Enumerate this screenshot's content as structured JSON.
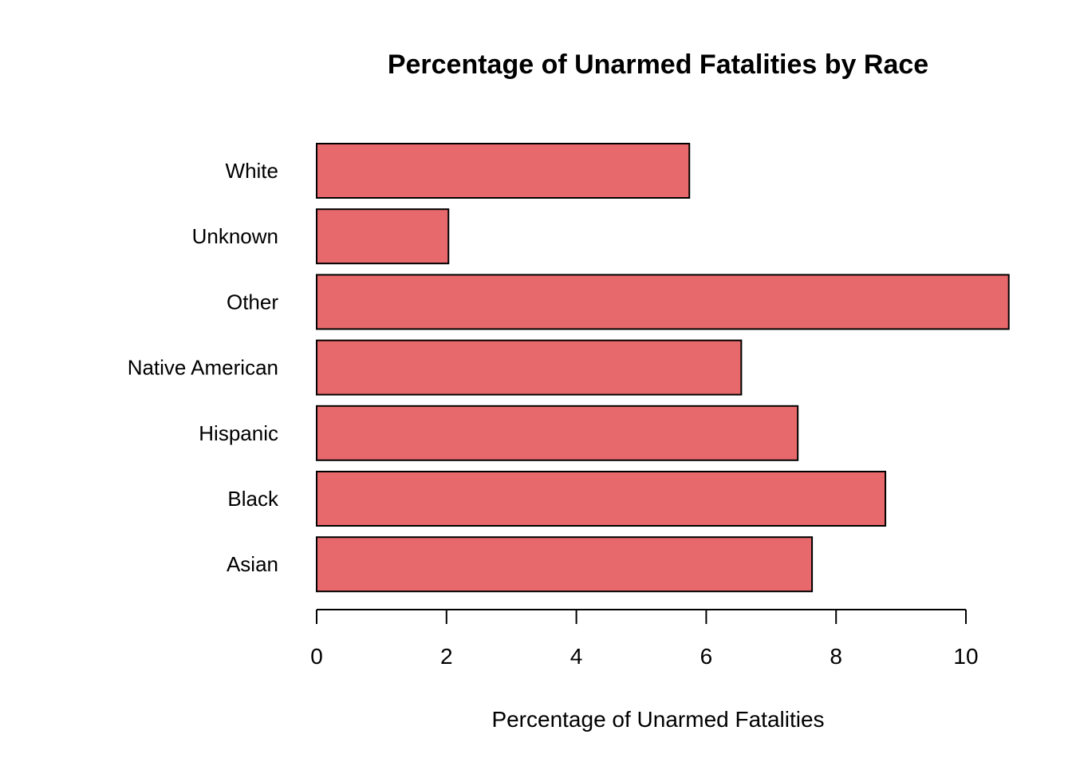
{
  "chart_data": {
    "type": "bar",
    "orientation": "horizontal",
    "title": "Percentage of Unarmed Fatalities by Race",
    "xlabel": "Percentage of Unarmed Fatalities",
    "ylabel": "",
    "categories": [
      "Asian",
      "Black",
      "Hispanic",
      "Native American",
      "Other",
      "Unknown",
      "White"
    ],
    "values": [
      7.63,
      8.76,
      7.41,
      6.54,
      10.66,
      2.03,
      5.74
    ],
    "xlim": [
      0,
      10
    ],
    "x_ticks": [
      0,
      2,
      4,
      6,
      8,
      10
    ],
    "bar_color": "#E8696B",
    "bar_border_color": "#000000",
    "grid": false,
    "legend": "none"
  }
}
